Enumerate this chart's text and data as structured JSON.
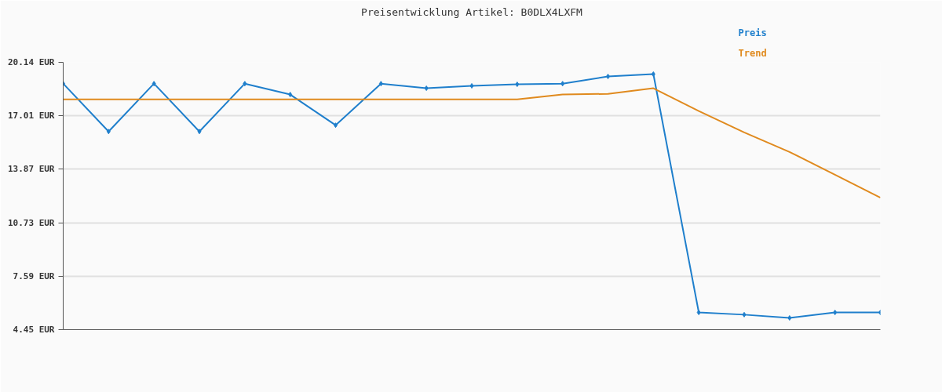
{
  "chart_data": {
    "type": "line",
    "title": "Preisentwicklung Artikel: B0DLX4LXFM",
    "categories": [
      null,
      null,
      null,
      null,
      null,
      null,
      null,
      null,
      null,
      null,
      null,
      null,
      null,
      null,
      null,
      null,
      null,
      null,
      null
    ],
    "series": [
      {
        "name": "Preis",
        "color": "#1f7fcc",
        "marker": "diamond",
        "values": [
          18.89,
          16.08,
          18.89,
          16.08,
          18.89,
          18.25,
          16.45,
          18.89,
          18.62,
          18.76,
          18.85,
          18.89,
          19.31,
          19.45,
          5.46,
          5.33,
          5.14,
          5.46,
          5.46
        ]
      },
      {
        "name": "Trend",
        "color": "#e08a1e",
        "marker": "none",
        "values": [
          17.97,
          17.97,
          17.97,
          17.97,
          17.97,
          17.97,
          17.97,
          17.97,
          17.97,
          17.97,
          17.97,
          18.25,
          18.29,
          18.62,
          17.28,
          16.03,
          14.88,
          13.54,
          12.2
        ]
      }
    ],
    "ylim": [
      4.45,
      20.14
    ],
    "yticks": [
      {
        "value": 4.45,
        "label": "4.45 EUR"
      },
      {
        "value": 7.59,
        "label": "7.59 EUR"
      },
      {
        "value": 10.73,
        "label": "10.73 EUR"
      },
      {
        "value": 13.87,
        "label": "13.87 EUR"
      },
      {
        "value": 17.01,
        "label": "17.01 EUR"
      },
      {
        "value": 20.14,
        "label": "20.14 EUR"
      }
    ],
    "grid": "y",
    "tick_labels": "y"
  }
}
